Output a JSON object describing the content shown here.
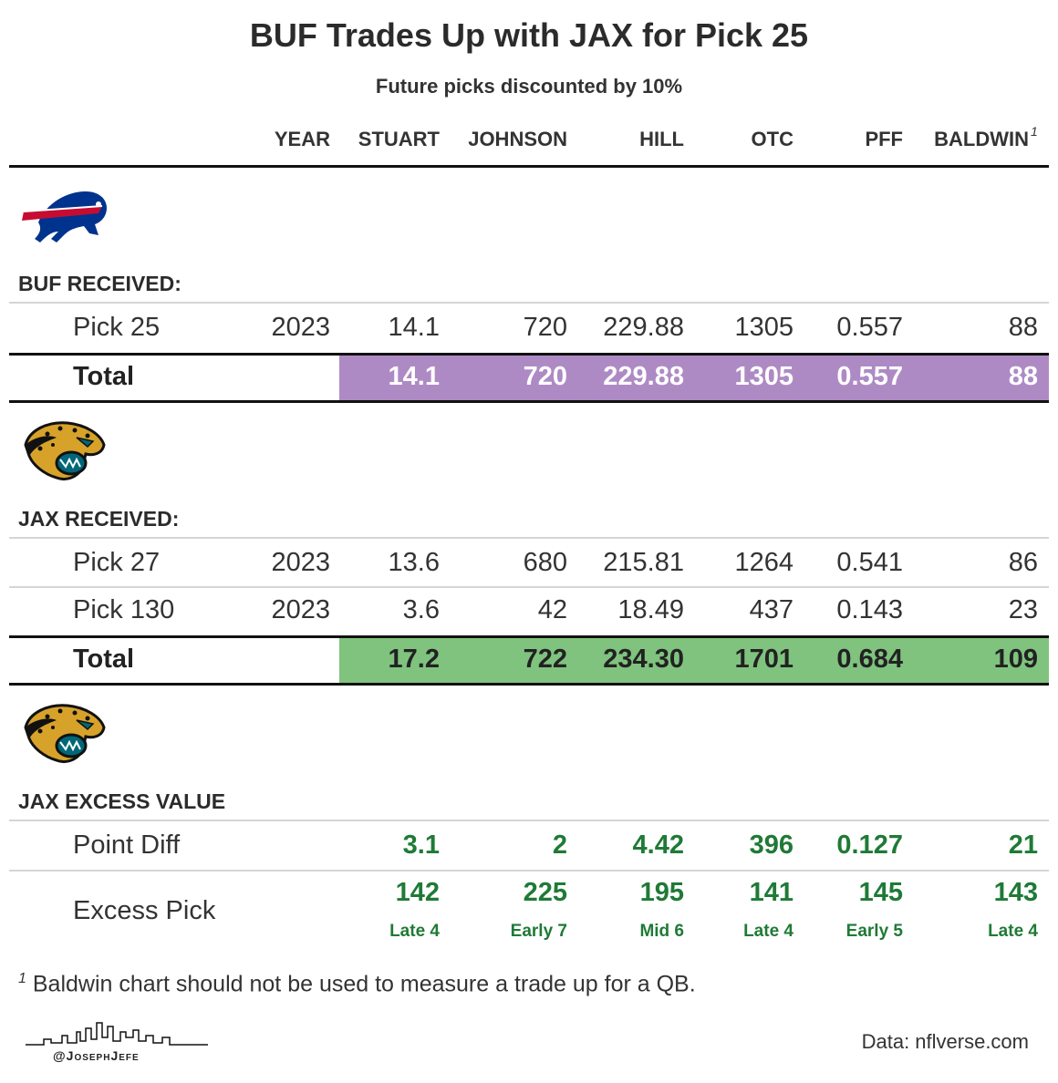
{
  "title": "BUF Trades Up with JAX for Pick 25",
  "subtitle": "Future picks discounted by 10%",
  "columns": {
    "year": "YEAR",
    "stuart": "STUART",
    "johnson": "JOHNSON",
    "hill": "HILL",
    "otc": "OTC",
    "pff": "PFF",
    "baldwin": "BALDWIN",
    "baldwin_note": "1"
  },
  "buf": {
    "section": "BUF RECEIVED:",
    "rows": [
      {
        "label": "Pick 25",
        "year": "2023",
        "stuart": "14.1",
        "johnson": "720",
        "hill": "229.88",
        "otc": "1305",
        "pff": "0.557",
        "baldwin": "88"
      }
    ],
    "total": {
      "label": "Total",
      "stuart": "14.1",
      "johnson": "720",
      "hill": "229.88",
      "otc": "1305",
      "pff": "0.557",
      "baldwin": "88"
    }
  },
  "jax": {
    "section": "JAX RECEIVED:",
    "rows": [
      {
        "label": "Pick 27",
        "year": "2023",
        "stuart": "13.6",
        "johnson": "680",
        "hill": "215.81",
        "otc": "1264",
        "pff": "0.541",
        "baldwin": "86"
      },
      {
        "label": "Pick 130",
        "year": "2023",
        "stuart": "3.6",
        "johnson": "42",
        "hill": "18.49",
        "otc": "437",
        "pff": "0.143",
        "baldwin": "23"
      }
    ],
    "total": {
      "label": "Total",
      "stuart": "17.2",
      "johnson": "722",
      "hill": "234.30",
      "otc": "1701",
      "pff": "0.684",
      "baldwin": "109"
    }
  },
  "excess": {
    "section": "JAX EXCESS VALUE",
    "point_diff": {
      "label": "Point Diff",
      "stuart": "3.1",
      "johnson": "2",
      "hill": "4.42",
      "otc": "396",
      "pff": "0.127",
      "baldwin": "21"
    },
    "excess_pick": {
      "label": "Excess Pick",
      "stuart": "142",
      "johnson": "225",
      "hill": "195",
      "otc": "141",
      "pff": "145",
      "baldwin": "143"
    },
    "excess_round": {
      "stuart": "Late 4",
      "johnson": "Early 7",
      "hill": "Mid 6",
      "otc": "Late 4",
      "pff": "Early 5",
      "baldwin": "Late 4"
    }
  },
  "footnote": {
    "mark": "1",
    "text": "Baldwin chart should not be used to measure a trade up for a QB."
  },
  "source": "Data: nflverse.com",
  "handle": "@JosephJefe",
  "colors": {
    "buf_total": "#ae8ac5",
    "jax_total": "#7fc37e",
    "excess_text": "#1f7a36",
    "bills_blue": "#00338d",
    "bills_red": "#c60c30",
    "jags_teal": "#006778",
    "jags_gold": "#d7a22a"
  },
  "icons": [
    "bills-logo",
    "jaguars-logo",
    "skyline-logo"
  ]
}
